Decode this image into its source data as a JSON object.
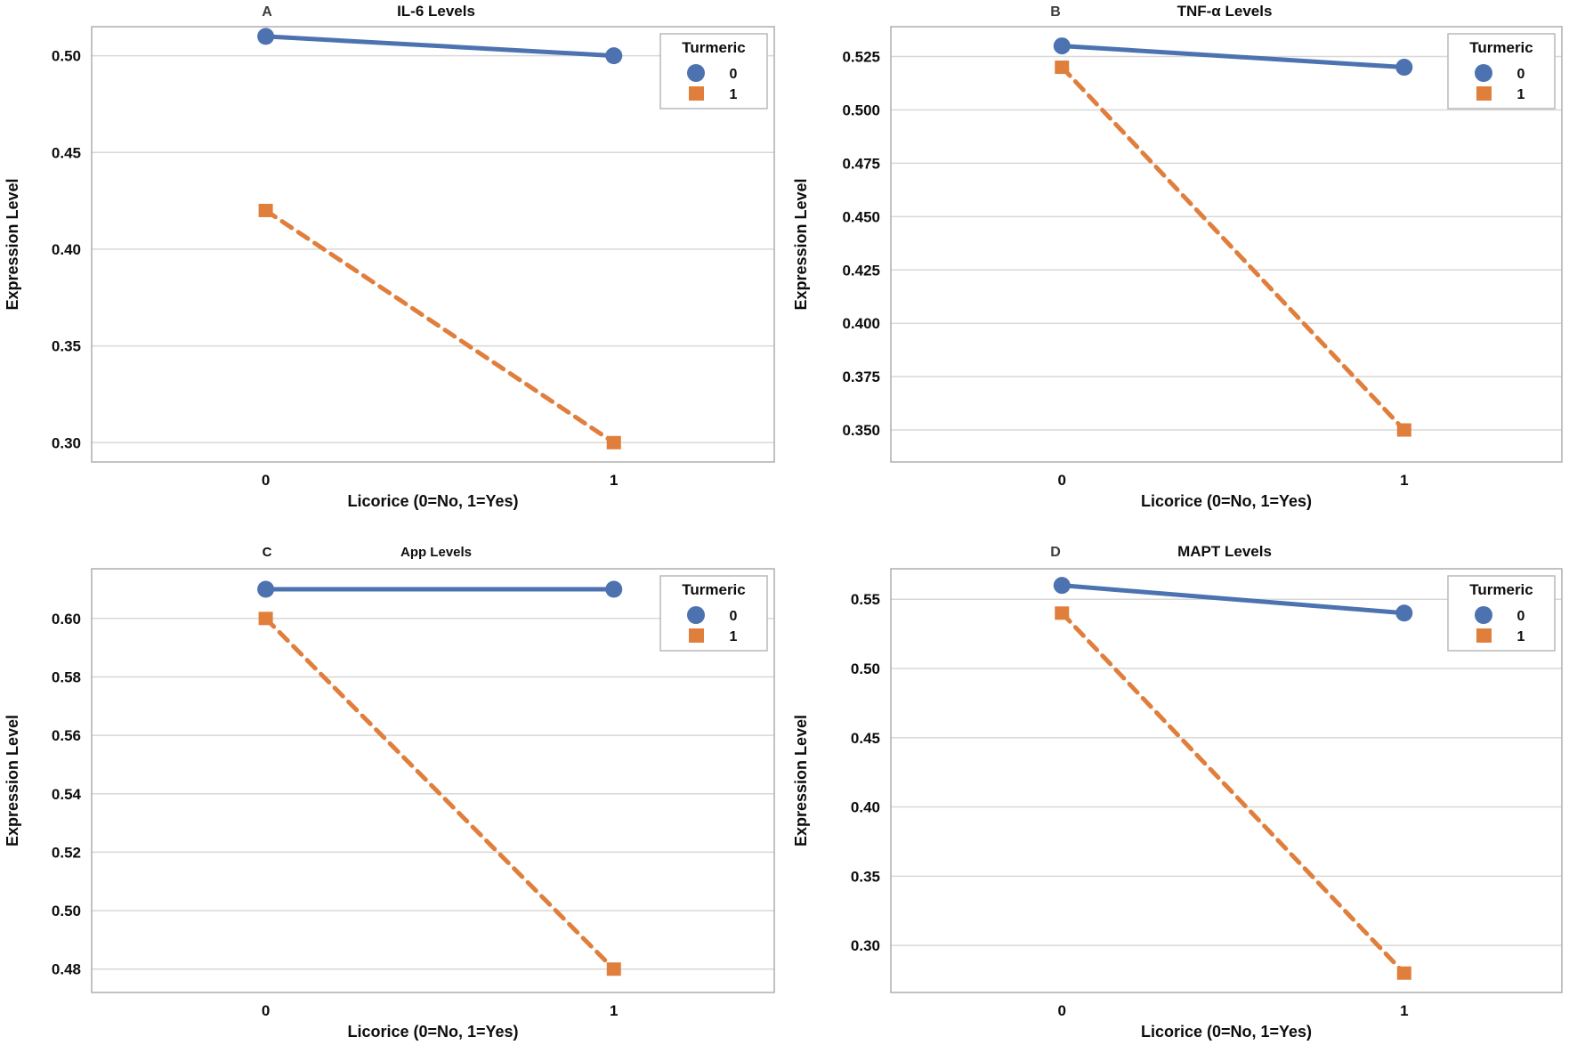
{
  "page": {
    "background": "#ffffff"
  },
  "colors": {
    "turmeric_0_blue": "#4C72B0",
    "turmeric_1_orange": "#E07E3C",
    "gridline": "#d8d8d8",
    "plot_border": "#aeaeae",
    "text": "#0d0d0d"
  },
  "chart_data": [
    {
      "type": "line",
      "panel_label": "A",
      "title": "IL-6 Levels",
      "title_bold": false,
      "xlabel": "Licorice (0=No, 1=Yes)",
      "ylabel": "Expression Level",
      "x_categories": [
        "0",
        "1"
      ],
      "yticks": [
        0.5,
        0.45,
        0.4,
        0.35,
        0.3
      ],
      "ytick_labels": [
        "0.50",
        "0.45",
        "0.40",
        "0.35",
        "0.30"
      ],
      "ylim": [
        0.29,
        0.515
      ],
      "grid": "horizontal",
      "legend": {
        "title": "Turmeric",
        "position": "upper right"
      },
      "series": [
        {
          "name": "0",
          "marker": "circle",
          "line_style": "solid",
          "color": "#4C72B0",
          "values": [
            0.51,
            0.5
          ]
        },
        {
          "name": "1",
          "marker": "square",
          "line_style": "dashed",
          "color": "#E07E3C",
          "values": [
            0.42,
            0.3
          ]
        }
      ]
    },
    {
      "type": "line",
      "panel_label": "B",
      "title": "TNF-α Levels",
      "title_bold": false,
      "xlabel": "Licorice (0=No, 1=Yes)",
      "ylabel": "Expression Level",
      "x_categories": [
        "0",
        "1"
      ],
      "yticks": [
        0.525,
        0.5,
        0.475,
        0.45,
        0.425,
        0.4,
        0.375,
        0.35
      ],
      "ytick_labels": [
        "0.525",
        "0.500",
        "0.475",
        "0.450",
        "0.425",
        "0.400",
        "0.375",
        "0.350"
      ],
      "ylim": [
        0.335,
        0.539
      ],
      "grid": "horizontal",
      "legend": {
        "title": "Turmeric",
        "position": "upper right"
      },
      "series": [
        {
          "name": "0",
          "marker": "circle",
          "line_style": "solid",
          "color": "#4C72B0",
          "values": [
            0.53,
            0.52
          ]
        },
        {
          "name": "1",
          "marker": "square",
          "line_style": "dashed",
          "color": "#E07E3C",
          "values": [
            0.52,
            0.35
          ]
        }
      ]
    },
    {
      "type": "line",
      "panel_label": "C",
      "title": "App Levels",
      "title_bold": true,
      "xlabel": "Licorice (0=No, 1=Yes)",
      "ylabel": "Expression Level",
      "x_categories": [
        "0",
        "1"
      ],
      "yticks": [
        0.6,
        0.58,
        0.56,
        0.54,
        0.52,
        0.5,
        0.48
      ],
      "ytick_labels": [
        "0.60",
        "0.58",
        "0.56",
        "0.54",
        "0.52",
        "0.50",
        "0.48"
      ],
      "ylim": [
        0.472,
        0.617
      ],
      "grid": "horizontal",
      "legend": {
        "title": "Turmeric",
        "position": "upper right"
      },
      "series": [
        {
          "name": "0",
          "marker": "circle",
          "line_style": "solid",
          "color": "#4C72B0",
          "values": [
            0.61,
            0.61
          ]
        },
        {
          "name": "1",
          "marker": "square",
          "line_style": "dashed",
          "color": "#E07E3C",
          "values": [
            0.6,
            0.48
          ]
        }
      ]
    },
    {
      "type": "line",
      "panel_label": "D",
      "title": "MAPT Levels",
      "title_bold": false,
      "xlabel": "Licorice (0=No, 1=Yes)",
      "ylabel": "Expression Level",
      "x_categories": [
        "0",
        "1"
      ],
      "yticks": [
        0.55,
        0.5,
        0.45,
        0.4,
        0.35,
        0.3
      ],
      "ytick_labels": [
        "0.55",
        "0.50",
        "0.45",
        "0.40",
        "0.35",
        "0.30"
      ],
      "ylim": [
        0.266,
        0.572
      ],
      "grid": "horizontal",
      "legend": {
        "title": "Turmeric",
        "position": "upper right"
      },
      "series": [
        {
          "name": "0",
          "marker": "circle",
          "line_style": "solid",
          "color": "#4C72B0",
          "values": [
            0.56,
            0.54
          ]
        },
        {
          "name": "1",
          "marker": "square",
          "line_style": "dashed",
          "color": "#E07E3C",
          "values": [
            0.54,
            0.28
          ]
        }
      ]
    }
  ]
}
